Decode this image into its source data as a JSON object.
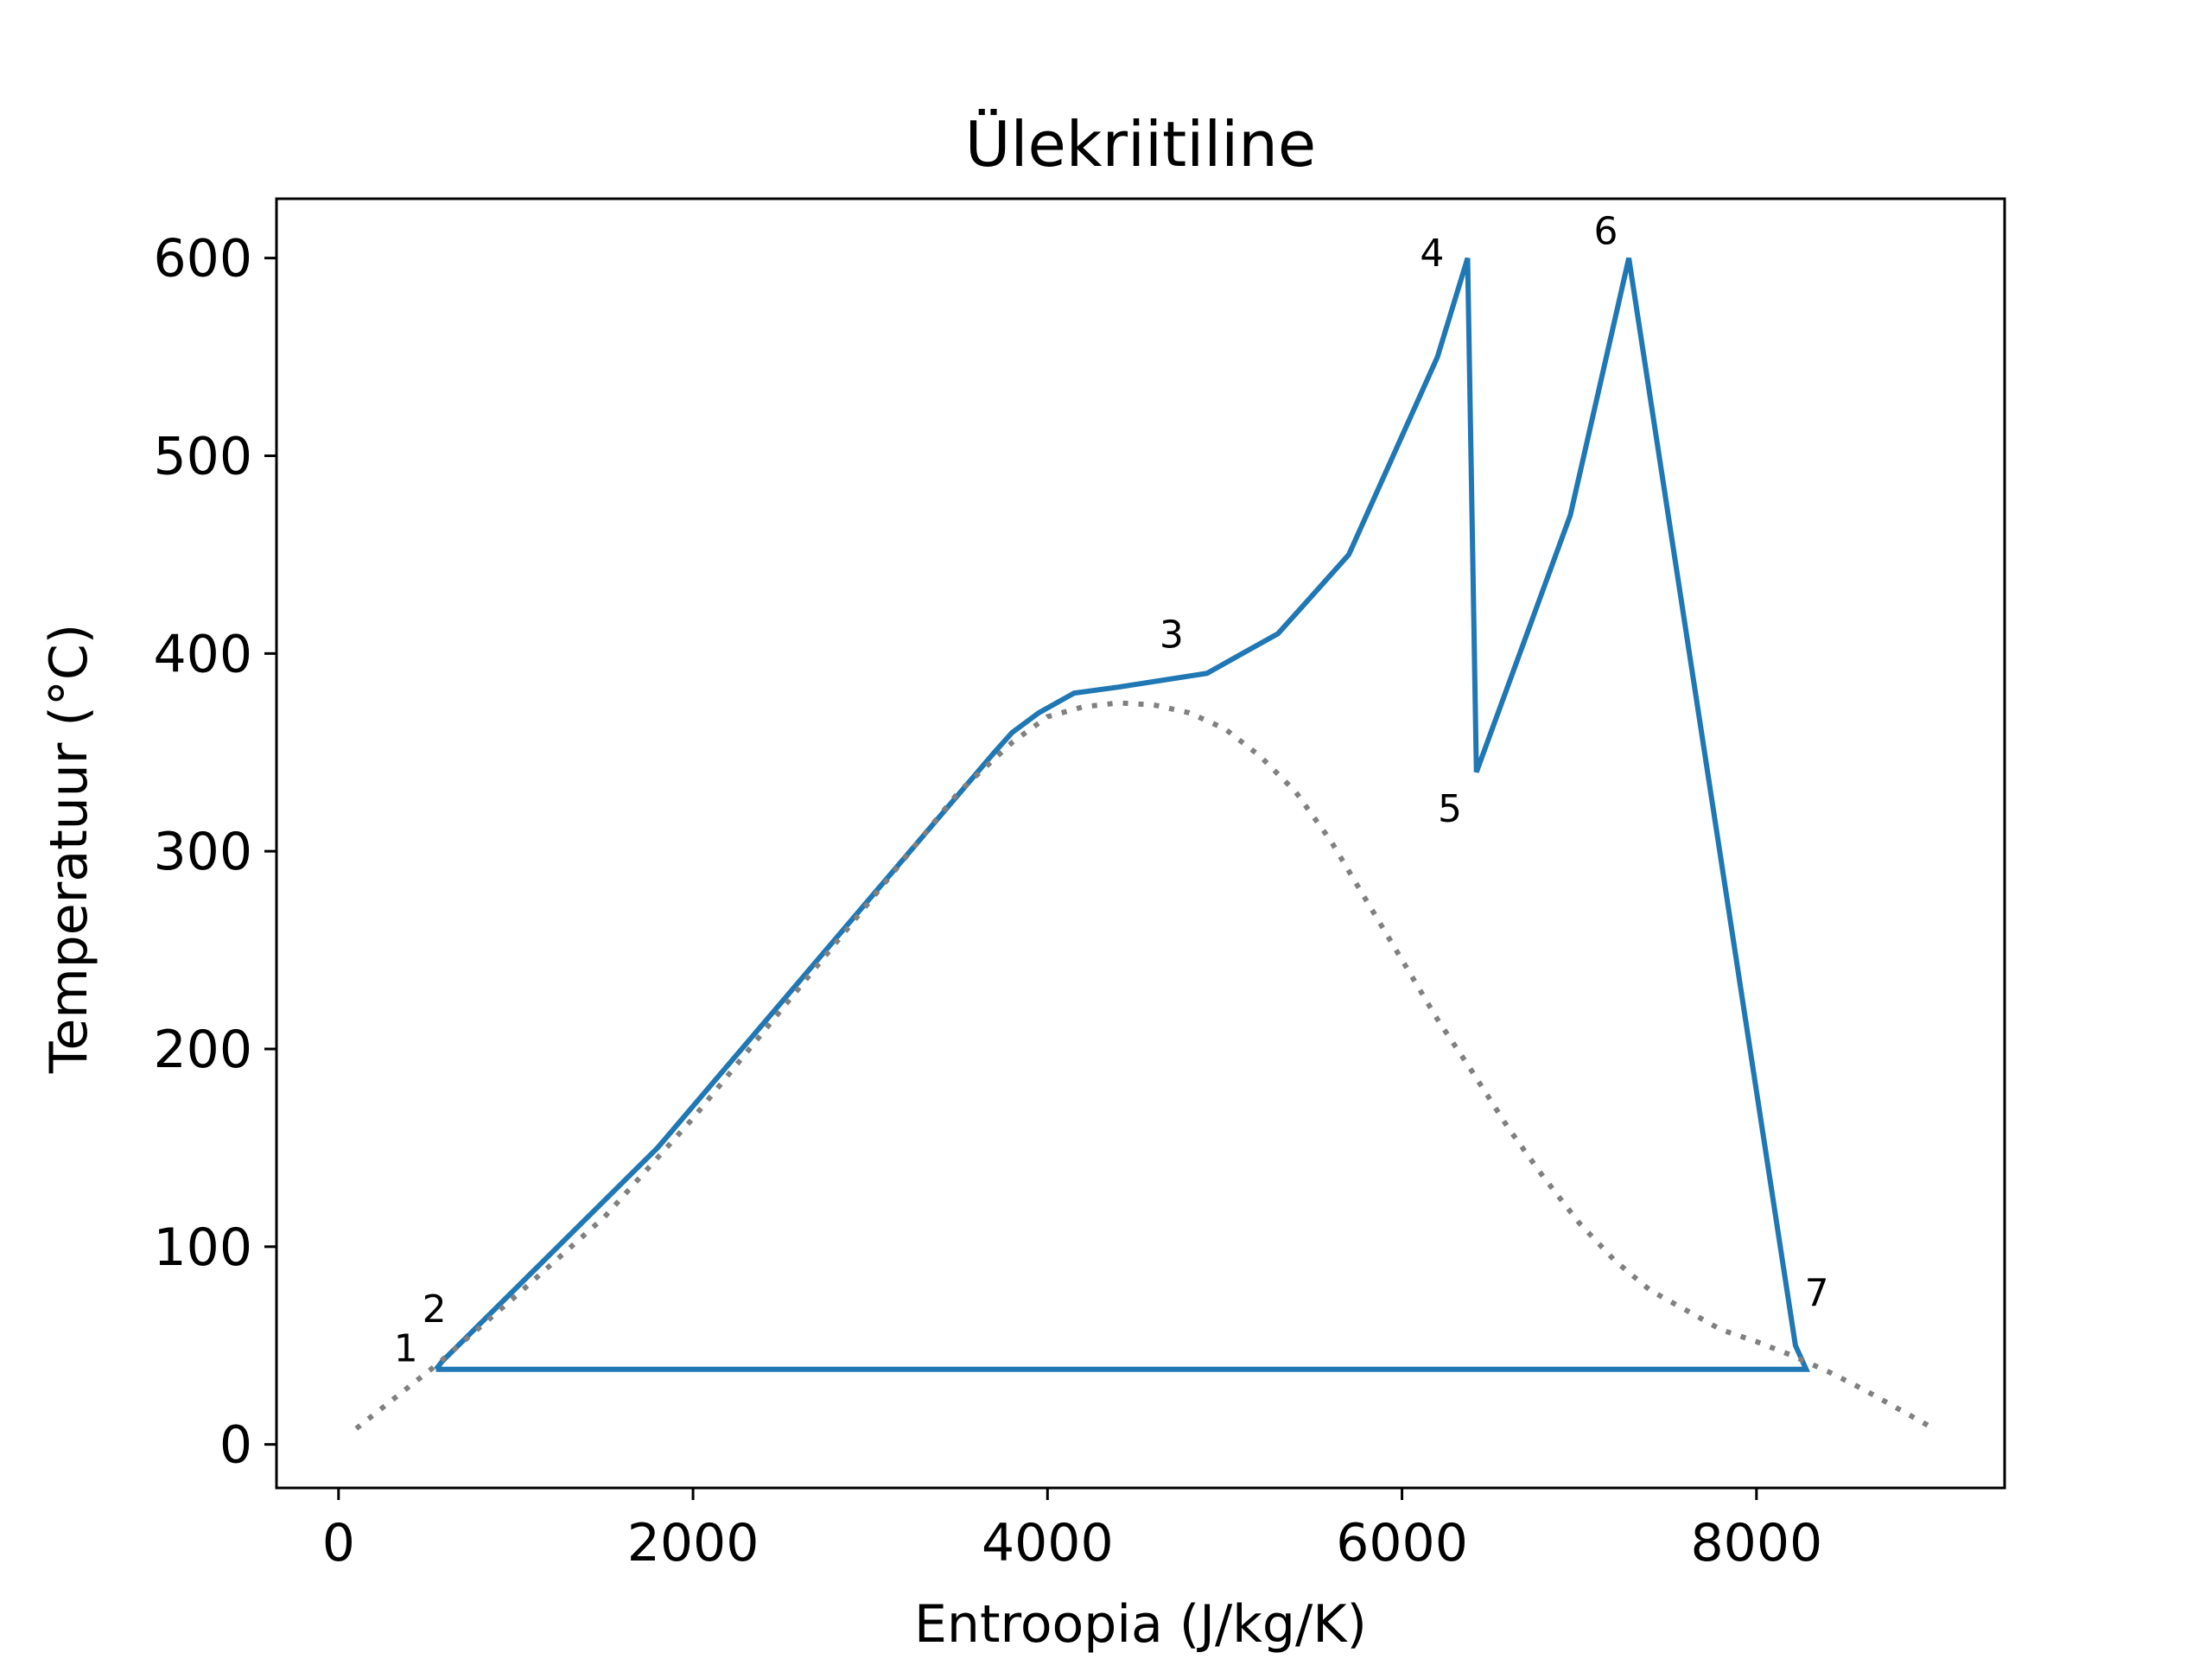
{
  "chart_data": {
    "type": "line",
    "title": "Ülekriitiline",
    "xlabel": "Entroopia (J/kg/K)",
    "ylabel": "Temperatuur (°C)",
    "xlim": [
      -350,
      9400
    ],
    "ylim": [
      -22,
      630
    ],
    "xticks": [
      0,
      2000,
      4000,
      6000,
      8000
    ],
    "yticks": [
      0,
      100,
      200,
      300,
      400,
      500,
      600
    ],
    "grid": false,
    "colors": {
      "cycle": "#1f77b4",
      "dome": "#808080"
    },
    "series": [
      {
        "style": "solid",
        "x": [
          550,
          585,
          1800,
          3700,
          3800,
          3950,
          4150,
          4400,
          4900,
          5100,
          5300,
          5500,
          5700,
          5950,
          6200,
          6370,
          6420,
          6950,
          7280,
          8220,
          8280,
          550
        ],
        "y": [
          38,
          42,
          150,
          350,
          360,
          370,
          380,
          383,
          390,
          400,
          410,
          430,
          450,
          500,
          550,
          600,
          340,
          470,
          600,
          50,
          38,
          38
        ]
      },
      {
        "style": "dotted",
        "x": [
          100,
          550,
          1000,
          1500,
          2000,
          2500,
          3000,
          3500,
          3800,
          4000,
          4200,
          4400,
          4600,
          4800,
          5000,
          5200,
          5400,
          5600,
          5800,
          6000,
          6200,
          6400,
          6600,
          6800,
          7000,
          7200,
          7400,
          7600,
          7800,
          8000,
          8200,
          8400,
          8600,
          8800,
          9000
        ],
        "y": [
          8,
          40,
          75,
          115,
          165,
          220,
          275,
          330,
          355,
          368,
          373,
          375,
          374,
          370,
          362,
          348,
          330,
          305,
          275,
          245,
          215,
          188,
          160,
          135,
          112,
          93,
          78,
          68,
          58,
          52,
          45,
          37,
          28,
          18,
          8
        ]
      }
    ],
    "annotations": [
      {
        "text": "1",
        "x": 380,
        "y": 42
      },
      {
        "text": "2",
        "x": 540,
        "y": 62
      },
      {
        "text": "3",
        "x": 4700,
        "y": 403
      },
      {
        "text": "4",
        "x": 6170,
        "y": 596
      },
      {
        "text": "5",
        "x": 6270,
        "y": 315
      },
      {
        "text": "6",
        "x": 7150,
        "y": 607
      },
      {
        "text": "7",
        "x": 8340,
        "y": 70
      }
    ]
  }
}
